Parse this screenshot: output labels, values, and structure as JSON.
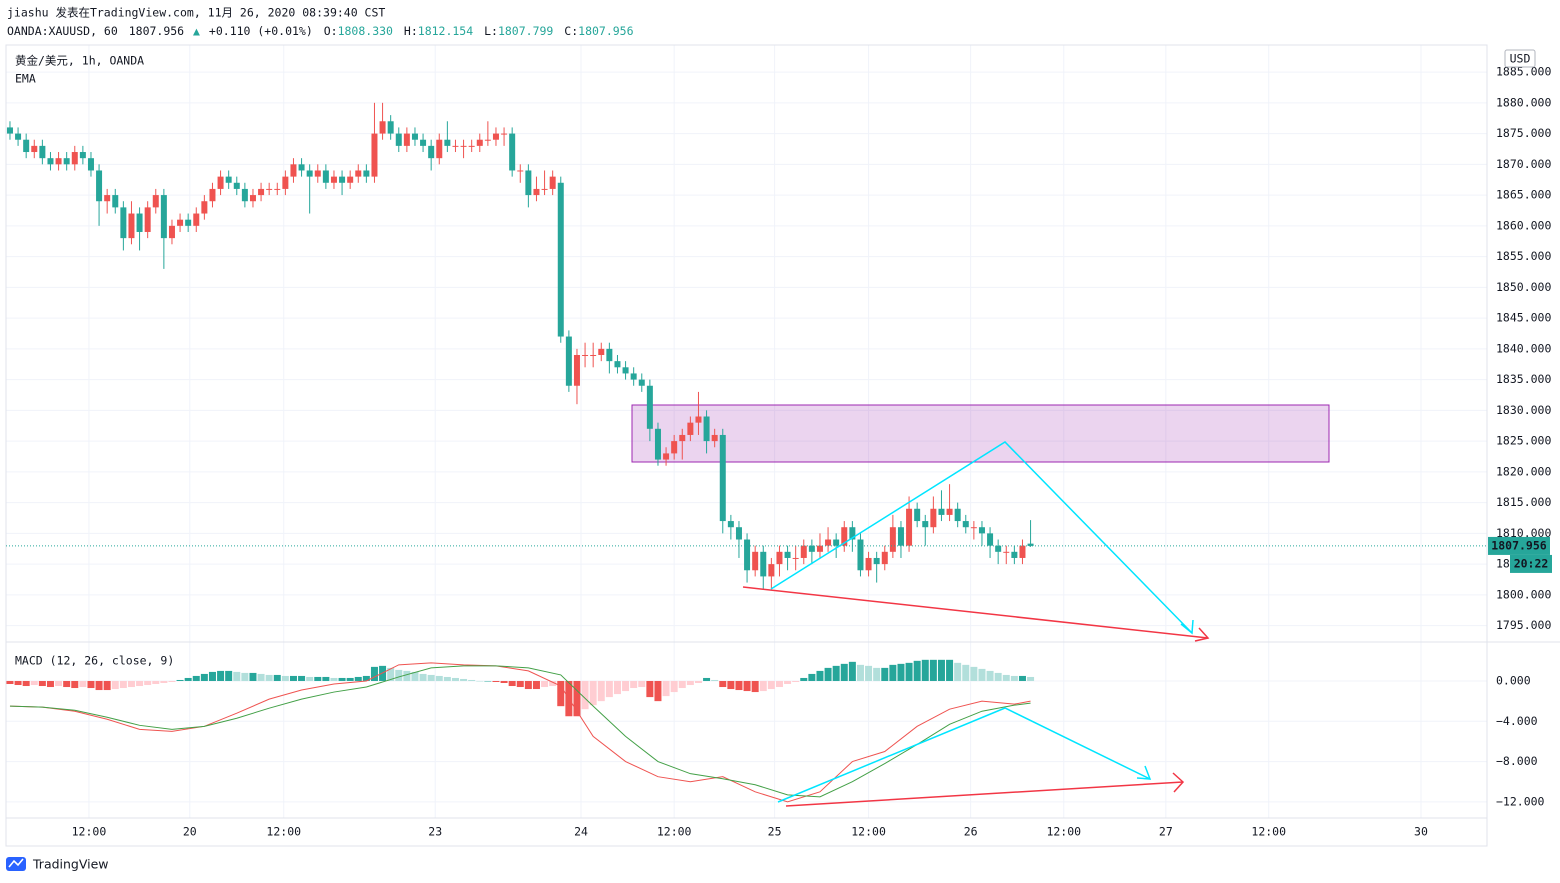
{
  "header": {
    "author_line": "jiashu 发表在TradingView.com, 11月 26, 2020 08:39:40 CST",
    "symbol": "OANDA:XAUUSD, 60",
    "last": "1807.956",
    "arrow": "▲",
    "change": "+0.110 (+0.01%)",
    "o_label": "O:",
    "o": "1808.330",
    "h_label": "H:",
    "h": "1812.154",
    "l_label": "L:",
    "l": "1807.799",
    "c_label": "C:",
    "c": "1807.956"
  },
  "chart_data": [
    {
      "type": "candlestick",
      "legend": "黄金/美元, 1h, OANDA",
      "indicator": "EMA",
      "currency": "USD",
      "up_color": "#ef5350",
      "down_color": "#26a69a",
      "candles": [
        [
          1876,
          1877,
          1874,
          1875
        ],
        [
          1875,
          1876,
          1873,
          1874
        ],
        [
          1874,
          1875,
          1871,
          1872
        ],
        [
          1872,
          1874,
          1871,
          1873
        ],
        [
          1873,
          1874,
          1870,
          1871
        ],
        [
          1871,
          1872,
          1869,
          1870
        ],
        [
          1870,
          1872,
          1869,
          1871
        ],
        [
          1871,
          1872,
          1869,
          1870
        ],
        [
          1870,
          1873,
          1869,
          1872
        ],
        [
          1872,
          1873,
          1870,
          1871
        ],
        [
          1871,
          1872,
          1868,
          1869
        ],
        [
          1869,
          1870,
          1860,
          1864
        ],
        [
          1864,
          1866,
          1862,
          1865
        ],
        [
          1865,
          1866,
          1862,
          1863
        ],
        [
          1863,
          1864,
          1856,
          1858
        ],
        [
          1858,
          1864,
          1857,
          1862
        ],
        [
          1862,
          1863,
          1856,
          1859
        ],
        [
          1859,
          1864,
          1858,
          1863
        ],
        [
          1863,
          1866,
          1862,
          1865
        ],
        [
          1865,
          1866,
          1853,
          1858
        ],
        [
          1858,
          1861,
          1857,
          1860
        ],
        [
          1860,
          1862,
          1859,
          1861
        ],
        [
          1861,
          1862,
          1859,
          1860
        ],
        [
          1860,
          1863,
          1859,
          1862
        ],
        [
          1862,
          1865,
          1861,
          1864
        ],
        [
          1864,
          1867,
          1863,
          1866
        ],
        [
          1866,
          1869,
          1865,
          1868
        ],
        [
          1868,
          1869,
          1866,
          1867
        ],
        [
          1867,
          1868,
          1865,
          1866
        ],
        [
          1866,
          1867,
          1863,
          1864
        ],
        [
          1864,
          1866,
          1863,
          1865
        ],
        [
          1865,
          1867,
          1864,
          1866
        ],
        [
          1866,
          1867,
          1865,
          1866
        ],
        [
          1866,
          1867,
          1865,
          1866
        ],
        [
          1866,
          1869,
          1865,
          1868
        ],
        [
          1868,
          1871,
          1867,
          1870
        ],
        [
          1870,
          1871,
          1868,
          1869
        ],
        [
          1869,
          1870,
          1862,
          1868
        ],
        [
          1868,
          1870,
          1867,
          1869
        ],
        [
          1869,
          1870,
          1866,
          1867
        ],
        [
          1867,
          1869,
          1866,
          1868
        ],
        [
          1868,
          1869,
          1865,
          1867
        ],
        [
          1867,
          1869,
          1866,
          1868
        ],
        [
          1868,
          1870,
          1867,
          1869
        ],
        [
          1869,
          1870,
          1867,
          1868
        ],
        [
          1868,
          1880,
          1867,
          1875
        ],
        [
          1875,
          1880,
          1874,
          1877
        ],
        [
          1877,
          1878,
          1874,
          1875
        ],
        [
          1875,
          1876,
          1872,
          1873
        ],
        [
          1873,
          1876,
          1872,
          1875
        ],
        [
          1875,
          1876,
          1873,
          1874
        ],
        [
          1874,
          1875,
          1872,
          1873
        ],
        [
          1873,
          1874,
          1869,
          1871
        ],
        [
          1871,
          1875,
          1870,
          1874
        ],
        [
          1874,
          1877,
          1872,
          1873
        ],
        [
          1873,
          1874,
          1872,
          1873
        ],
        [
          1873,
          1874,
          1871,
          1873
        ],
        [
          1873,
          1874,
          1872,
          1873
        ],
        [
          1873,
          1875,
          1872,
          1874
        ],
        [
          1874,
          1877,
          1873,
          1874
        ],
        [
          1874,
          1876,
          1873,
          1875
        ],
        [
          1875,
          1876,
          1873,
          1875
        ],
        [
          1875,
          1876,
          1868,
          1869
        ],
        [
          1869,
          1870,
          1867,
          1869
        ],
        [
          1869,
          1870,
          1863,
          1865
        ],
        [
          1865,
          1868,
          1864,
          1866
        ],
        [
          1866,
          1869,
          1865,
          1866
        ],
        [
          1866,
          1869,
          1865,
          1868
        ],
        [
          1867,
          1868,
          1841,
          1842
        ],
        [
          1842,
          1843,
          1833,
          1834
        ],
        [
          1834,
          1840,
          1831,
          1839
        ],
        [
          1839,
          1841,
          1837,
          1839
        ],
        [
          1839,
          1841,
          1837,
          1839
        ],
        [
          1839,
          1841,
          1838,
          1840
        ],
        [
          1840,
          1841,
          1836,
          1838
        ],
        [
          1838,
          1839,
          1836,
          1837
        ],
        [
          1837,
          1838,
          1835,
          1836
        ],
        [
          1836,
          1837,
          1834,
          1835
        ],
        [
          1835,
          1836,
          1833,
          1834
        ],
        [
          1834,
          1835,
          1825,
          1827
        ],
        [
          1827,
          1828,
          1821,
          1822
        ],
        [
          1822,
          1824,
          1821,
          1823
        ],
        [
          1823,
          1826,
          1822,
          1825
        ],
        [
          1825,
          1827,
          1822,
          1826
        ],
        [
          1826,
          1829,
          1825,
          1828
        ],
        [
          1828,
          1833,
          1826,
          1829
        ],
        [
          1829,
          1830,
          1823,
          1825
        ],
        [
          1825,
          1827,
          1824,
          1826
        ],
        [
          1826,
          1827,
          1810,
          1812
        ],
        [
          1812,
          1813,
          1809,
          1811
        ],
        [
          1811,
          1812,
          1806,
          1809
        ],
        [
          1809,
          1810,
          1802,
          1804
        ],
        [
          1804,
          1808,
          1803,
          1807
        ],
        [
          1807,
          1808,
          1801,
          1803
        ],
        [
          1803,
          1806,
          1801,
          1805
        ],
        [
          1805,
          1808,
          1803,
          1807
        ],
        [
          1807,
          1808,
          1804,
          1806
        ],
        [
          1806,
          1808,
          1804,
          1806
        ],
        [
          1806,
          1809,
          1805,
          1808
        ],
        [
          1808,
          1809,
          1805,
          1807
        ],
        [
          1807,
          1810,
          1806,
          1808
        ],
        [
          1808,
          1811,
          1807,
          1809
        ],
        [
          1809,
          1810,
          1806,
          1808
        ],
        [
          1808,
          1812,
          1807,
          1811
        ],
        [
          1811,
          1812,
          1807,
          1809
        ],
        [
          1809,
          1810,
          1803,
          1804
        ],
        [
          1804,
          1807,
          1803,
          1806
        ],
        [
          1806,
          1807,
          1802,
          1805
        ],
        [
          1805,
          1808,
          1804,
          1807
        ],
        [
          1807,
          1813,
          1806,
          1811
        ],
        [
          1811,
          1812,
          1806,
          1808
        ],
        [
          1808,
          1816,
          1807,
          1814
        ],
        [
          1814,
          1815,
          1811,
          1812
        ],
        [
          1812,
          1813,
          1808,
          1811
        ],
        [
          1811,
          1816,
          1810,
          1814
        ],
        [
          1814,
          1817,
          1812,
          1813
        ],
        [
          1813,
          1818,
          1812,
          1814
        ],
        [
          1814,
          1815,
          1811,
          1812
        ],
        [
          1812,
          1813,
          1810,
          1811
        ],
        [
          1811,
          1812,
          1809,
          1811
        ],
        [
          1811,
          1812,
          1808,
          1810
        ],
        [
          1810,
          1811,
          1806,
          1808
        ],
        [
          1808,
          1809,
          1805,
          1807
        ],
        [
          1807,
          1808,
          1805,
          1807
        ],
        [
          1807,
          1808,
          1805,
          1806
        ],
        [
          1806,
          1809,
          1805,
          1808
        ],
        [
          1808.33,
          1812.154,
          1807.799,
          1807.956
        ]
      ],
      "last_price": 1807.956,
      "last_color": "#26a69a",
      "countdown": "20:22",
      "ylim": [
        1792.5,
        1889.4
      ],
      "yticks": [
        {
          "value": 1795,
          "label": "1795.000"
        },
        {
          "value": 1800,
          "label": "1800.000"
        },
        {
          "value": 1805,
          "label": "1805.000"
        },
        {
          "value": 1810,
          "label": "1810.000"
        },
        {
          "value": 1815,
          "label": "1815.000"
        },
        {
          "value": 1820,
          "label": "1820.000"
        },
        {
          "value": 1825,
          "label": "1825.000"
        },
        {
          "value": 1830,
          "label": "1830.000"
        },
        {
          "value": 1835,
          "label": "1835.000"
        },
        {
          "value": 1840,
          "label": "1840.000"
        },
        {
          "value": 1845,
          "label": "1845.000"
        },
        {
          "value": 1850,
          "label": "1850.000"
        },
        {
          "value": 1855,
          "label": "1855.000"
        },
        {
          "value": 1860,
          "label": "1860.000"
        },
        {
          "value": 1865,
          "label": "1865.000"
        },
        {
          "value": 1870,
          "label": "1870.000"
        },
        {
          "value": 1875,
          "label": "1875.000"
        },
        {
          "value": 1880,
          "label": "1880.000"
        },
        {
          "value": 1885,
          "label": "1885.000"
        }
      ],
      "xlim": [
        -0.49,
        182.35
      ],
      "xticks": [
        {
          "value": 9.75,
          "label": "12:00"
        },
        {
          "value": 22.2,
          "label": "20"
        },
        {
          "value": 33.8,
          "label": "12:00"
        },
        {
          "value": 52.5,
          "label": "23"
        },
        {
          "value": 70.5,
          "label": "24"
        },
        {
          "value": 82,
          "label": "12:00"
        },
        {
          "value": 94.4,
          "label": "25"
        },
        {
          "value": 106,
          "label": "12:00"
        },
        {
          "value": 118.6,
          "label": "26"
        },
        {
          "value": 130.1,
          "label": "12:00"
        },
        {
          "value": 142.7,
          "label": "27"
        },
        {
          "value": 155.4,
          "label": "12:00"
        },
        {
          "value": 174.2,
          "label": "30"
        }
      ],
      "grid": true
    },
    {
      "type": "macd",
      "title": "MACD (12, 26, close, 9)",
      "histogram": [
        -0.3,
        -0.4,
        -0.5,
        -0.4,
        -0.5,
        -0.6,
        -0.5,
        -0.6,
        -0.7,
        -0.6,
        -0.7,
        -0.9,
        -0.9,
        -0.8,
        -0.7,
        -0.6,
        -0.5,
        -0.4,
        -0.3,
        -0.2,
        -0.1,
        0.1,
        0.3,
        0.5,
        0.7,
        0.9,
        1.0,
        1.0,
        0.9,
        0.8,
        0.8,
        0.7,
        0.6,
        0.6,
        0.5,
        0.5,
        0.5,
        0.4,
        0.4,
        0.4,
        0.3,
        0.3,
        0.3,
        0.4,
        0.5,
        1.4,
        1.5,
        1.3,
        1.1,
        1.0,
        0.9,
        0.7,
        0.6,
        0.5,
        0.4,
        0.3,
        0.2,
        0.1,
        0.0,
        0.0,
        -0.1,
        -0.2,
        -0.5,
        -0.6,
        -0.8,
        -0.8,
        -0.6,
        -0.5,
        -2.5,
        -3.5,
        -3.5,
        -2.8,
        -2.4,
        -2.0,
        -1.6,
        -1.3,
        -1.0,
        -0.7,
        -0.6,
        -1.6,
        -2.0,
        -1.5,
        -1.1,
        -0.7,
        -0.4,
        -0.2,
        0.3,
        0.1,
        -0.6,
        -0.8,
        -0.9,
        -1.0,
        -1.1,
        -1.0,
        -0.8,
        -0.6,
        -0.3,
        -0.1,
        0.3,
        0.7,
        1.0,
        1.3,
        1.5,
        1.7,
        1.9,
        1.6,
        1.5,
        1.3,
        1.3,
        1.6,
        1.7,
        1.8,
        2.0,
        2.1,
        2.1,
        2.1,
        2.1,
        1.8,
        1.6,
        1.4,
        1.2,
        1.0,
        0.8,
        0.6,
        0.5,
        0.5,
        0.4
      ],
      "hist_colors": {
        "grow_above": "#26a69a",
        "fall_above": "#b2dfdb",
        "grow_below": "#ef5350",
        "fall_below": "#ffcdd2"
      },
      "series": [
        {
          "color": "#ef5350",
          "x": [
            0,
            4,
            8,
            12,
            16,
            20,
            24,
            28,
            32,
            36,
            40,
            44,
            48,
            52,
            56,
            60,
            64,
            68,
            72,
            76,
            80,
            84,
            88,
            92,
            96,
            100,
            104,
            108,
            112,
            116,
            120,
            124,
            126
          ],
          "values": [
            -2.5,
            -2.6,
            -3.0,
            -3.8,
            -4.8,
            -5.0,
            -4.5,
            -3.2,
            -1.8,
            -0.9,
            -0.3,
            0.0,
            1.6,
            1.8,
            1.6,
            1.5,
            1.0,
            -0.5,
            -5.5,
            -8.0,
            -9.5,
            -10.0,
            -9.5,
            -11.0,
            -12.0,
            -11.0,
            -8.0,
            -7.0,
            -4.5,
            -2.8,
            -2.0,
            -2.3,
            -2.0
          ]
        },
        {
          "color": "#43a047",
          "x": [
            0,
            4,
            8,
            12,
            16,
            20,
            24,
            28,
            32,
            36,
            40,
            44,
            48,
            52,
            56,
            60,
            64,
            68,
            72,
            76,
            80,
            84,
            88,
            92,
            96,
            100,
            104,
            108,
            112,
            116,
            120,
            124,
            126
          ],
          "values": [
            -2.5,
            -2.6,
            -2.9,
            -3.6,
            -4.4,
            -4.8,
            -4.5,
            -3.7,
            -2.7,
            -1.8,
            -1.1,
            -0.6,
            0.4,
            1.3,
            1.5,
            1.5,
            1.3,
            0.6,
            -2.5,
            -5.5,
            -8.0,
            -9.2,
            -9.7,
            -10.3,
            -11.3,
            -11.5,
            -10.0,
            -8.2,
            -6.3,
            -4.3,
            -3.0,
            -2.4,
            -2.2
          ]
        }
      ],
      "ylim": [
        -13.6,
        3.77
      ],
      "yticks": [
        {
          "value": 0,
          "label": "0.000"
        },
        {
          "value": -4,
          "label": "−4.000"
        },
        {
          "value": -8,
          "label": "−8.000"
        },
        {
          "value": -12,
          "label": "−12.000"
        }
      ]
    }
  ],
  "footer": {
    "brand": "TradingView"
  }
}
